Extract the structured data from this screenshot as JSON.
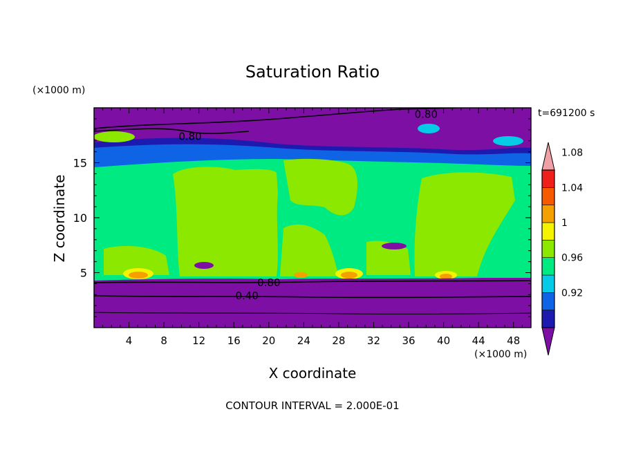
{
  "chart_data": {
    "type": "heatmap",
    "title": "Saturation Ratio",
    "xlabel": "X coordinate",
    "ylabel": "Z coordinate",
    "x_unit": "(×1000 m)",
    "y_unit": "(×1000 m)",
    "time_label": "t=691200 s",
    "footer": "CONTOUR INTERVAL = 2.000E-01",
    "xlim": [
      0,
      50
    ],
    "ylim": [
      0,
      20
    ],
    "xticks": [
      4,
      8,
      12,
      16,
      20,
      24,
      28,
      32,
      36,
      40,
      44,
      48
    ],
    "yticks": [
      5,
      10,
      15
    ],
    "contour_labels": [
      {
        "x": 38.0,
        "z": 19.4,
        "text": "0.80"
      },
      {
        "x": 11.0,
        "z": 17.4,
        "text": "0.80"
      },
      {
        "x": 20.0,
        "z": 4.1,
        "text": "0.80"
      },
      {
        "x": 17.5,
        "z": 2.9,
        "text": "0.40"
      }
    ],
    "colorbar": {
      "levels": [
        0.92,
        0.96,
        1,
        1.04,
        1.08
      ],
      "label_texts": [
        "0.92",
        "0.96",
        "1",
        "1.04",
        "1.08"
      ],
      "colors": [
        "#7d0fa5",
        "#1d1ab0",
        "#0f64e6",
        "#06cbe6",
        "#00ea82",
        "#8de800",
        "#f6f300",
        "#f4a100",
        "#f55a00",
        "#ee2019",
        "#f0a1a5"
      ]
    }
  }
}
